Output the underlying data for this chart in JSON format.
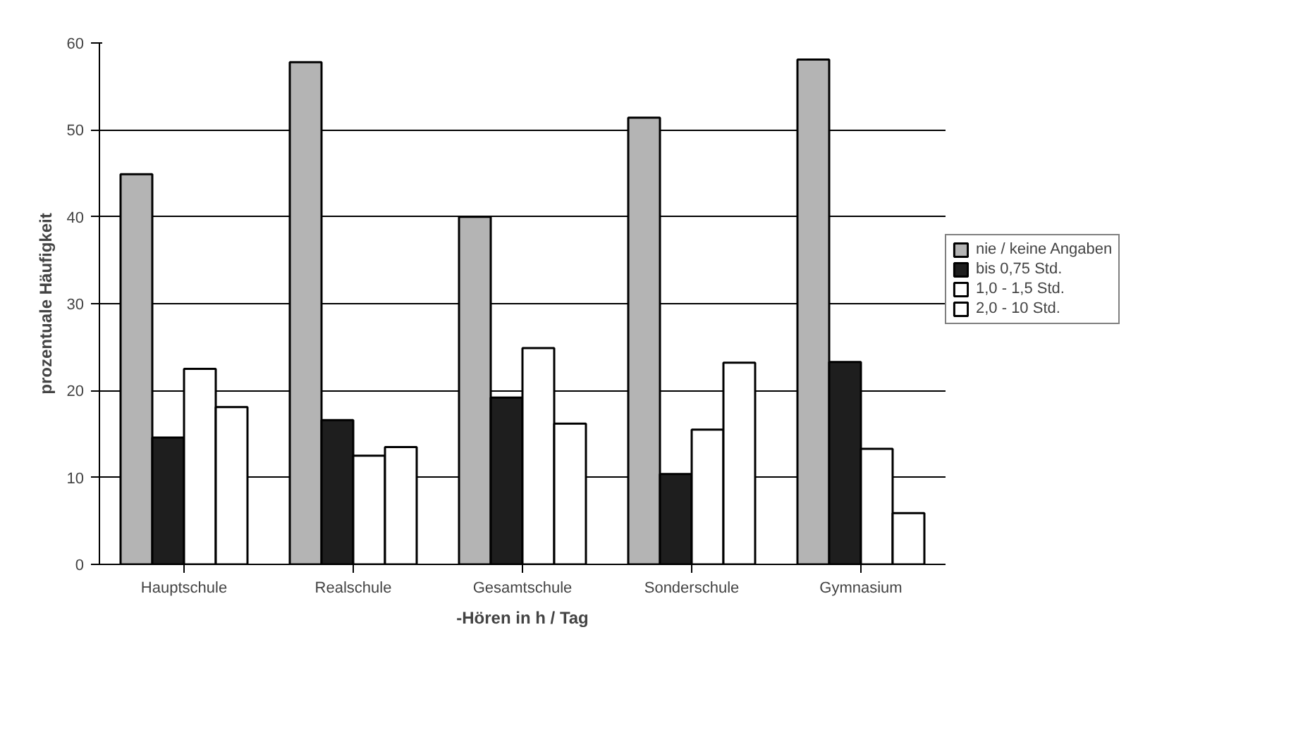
{
  "chart_data": {
    "type": "bar",
    "xlabel": "-Hören in h / Tag",
    "ylabel": "prozentuale Häufigkeit",
    "categories": [
      "Hauptschule",
      "Realschule",
      "Gesamtschule",
      "Sonderschule",
      "Gymnasium"
    ],
    "series": [
      {
        "name": "nie / keine Angaben",
        "color": "#b4b4b4",
        "values": [
          44.9,
          57.8,
          40.0,
          51.4,
          58.1
        ]
      },
      {
        "name": "bis 0,75 Std.",
        "color": "#1e1e1e",
        "values": [
          14.6,
          16.6,
          19.2,
          10.4,
          23.3
        ]
      },
      {
        "name": "1,0 - 1,5 Std.",
        "color": "#ffffff",
        "values": [
          22.5,
          12.5,
          24.9,
          15.5,
          13.3
        ]
      },
      {
        "name": "2,0 - 10 Std.",
        "color": "#ffffff",
        "values": [
          18.1,
          13.5,
          16.2,
          23.2,
          5.9
        ]
      }
    ],
    "ylim": [
      0,
      60
    ],
    "yticks": [
      0,
      10,
      20,
      30,
      40,
      50,
      60
    ],
    "grid": "y",
    "legend": "right"
  }
}
